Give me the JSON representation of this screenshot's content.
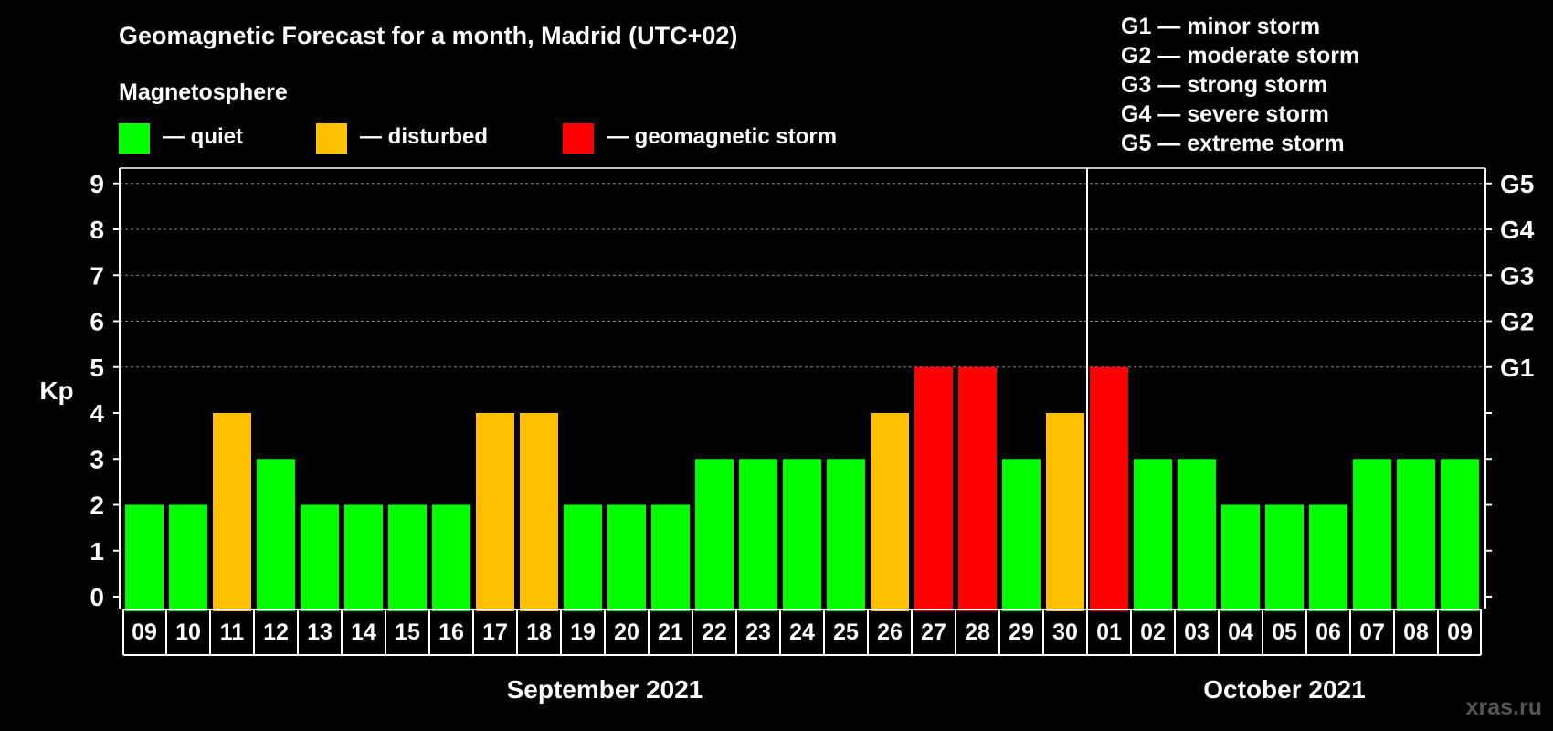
{
  "chart_data": {
    "type": "bar",
    "title": "Geomagnetic Forecast for a month, Madrid (UTC+02)",
    "legend_title": "Magnetosphere",
    "legend": [
      {
        "label": "— quiet",
        "color": "#00ff00"
      },
      {
        "label": "— disturbed",
        "color": "#ffc000"
      },
      {
        "label": "— geomagnetic storm",
        "color": "#ff0000"
      }
    ],
    "storm_scale": [
      "G1 — minor storm",
      "G2 — moderate storm",
      "G3 — strong storm",
      "G4 — severe storm",
      "G5 — extreme storm"
    ],
    "ylabel": "Kp",
    "ylim": [
      0,
      9
    ],
    "yticks": [
      "0",
      "1",
      "2",
      "3",
      "4",
      "5",
      "6",
      "7",
      "8",
      "9"
    ],
    "right_axis": [
      {
        "kp": 5,
        "label": "G1"
      },
      {
        "kp": 6,
        "label": "G2"
      },
      {
        "kp": 7,
        "label": "G3"
      },
      {
        "kp": 8,
        "label": "G4"
      },
      {
        "kp": 9,
        "label": "G5"
      }
    ],
    "grid": "dashed at Kp 5-9",
    "categories": [
      "09",
      "10",
      "11",
      "12",
      "13",
      "14",
      "15",
      "16",
      "17",
      "18",
      "19",
      "20",
      "21",
      "22",
      "23",
      "24",
      "25",
      "26",
      "27",
      "28",
      "29",
      "30",
      "01",
      "02",
      "03",
      "04",
      "05",
      "06",
      "07",
      "08",
      "09"
    ],
    "values": [
      2,
      2,
      4,
      3,
      2,
      2,
      2,
      2,
      4,
      4,
      2,
      2,
      2,
      3,
      3,
      3,
      3,
      4,
      5,
      5,
      3,
      4,
      5,
      3,
      3,
      2,
      2,
      2,
      3,
      3,
      3
    ],
    "months": [
      {
        "label": "September 2021",
        "first_index": 0,
        "last_index": 21
      },
      {
        "label": "October 2021",
        "first_index": 22,
        "last_index": 30
      }
    ],
    "month_divider_before_index": 22,
    "colors": {
      "quiet": "#00ff00",
      "disturbed": "#ffc000",
      "storm": "#ff0000"
    },
    "thresholds": {
      "disturbed_kp": 4,
      "storm_kp": 5
    }
  },
  "watermark": "xras.ru"
}
